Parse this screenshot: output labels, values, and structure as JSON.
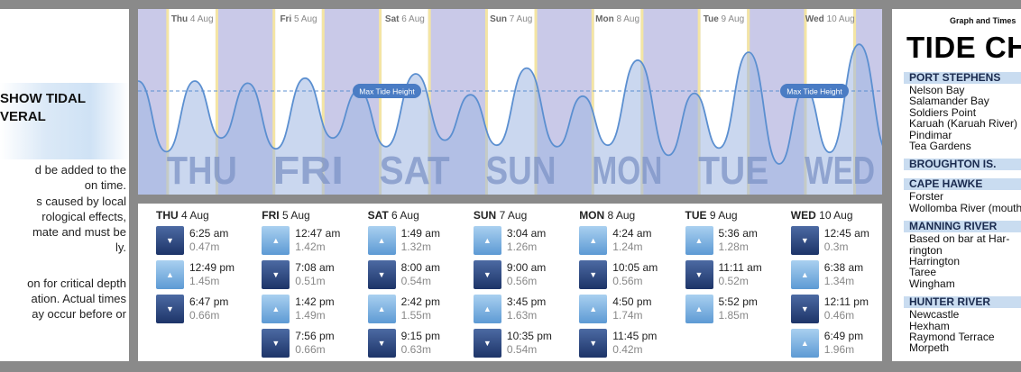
{
  "left": {
    "heading": "SHOW TIDAL\nVERAL",
    "paragraph1": [
      "d be added to the",
      "on time."
    ],
    "paragraph2": [
      "s caused by local",
      "rological   effects,",
      "mate and must be",
      "ly."
    ],
    "paragraph3": [
      "on for critical depth",
      "ation. Actual times",
      "ay occur before or"
    ]
  },
  "chart": {
    "day_labels": [
      "THU",
      "FRI",
      "SAT",
      "SUN",
      "MON",
      "TUE",
      "WED"
    ],
    "column_headers": [
      {
        "dow": "Thu",
        "date": "4 Aug"
      },
      {
        "dow": "Fri",
        "date": "5 Aug"
      },
      {
        "dow": "Sat",
        "date": "6 Aug"
      },
      {
        "dow": "Sun",
        "date": "7 Aug"
      },
      {
        "dow": "Mon",
        "date": "8 Aug"
      },
      {
        "dow": "Tue",
        "date": "9 Aug"
      },
      {
        "dow": "Wed",
        "date": "10 Aug"
      }
    ],
    "max_label": "Max Tide Height",
    "colors": {
      "night": "#c9c9e8",
      "day": "#ffffff",
      "dawn": "#f4e5a3",
      "water": "#9fb6e2",
      "curve": "#5b8fd0",
      "max_badge": "#4a7cc4"
    }
  },
  "chart_data": {
    "type": "area",
    "title": "",
    "xlabel": "",
    "ylabel": "",
    "max_tide_height": 2.0,
    "series": [
      {
        "points": [
          {
            "day": 0,
            "time": "6:25 am",
            "height": 0.47
          },
          {
            "day": 0,
            "time": "12:49 pm",
            "height": 1.45
          },
          {
            "day": 0,
            "time": "6:47 pm",
            "height": 0.66
          },
          {
            "day": 1,
            "time": "12:47 am",
            "height": 1.42
          },
          {
            "day": 1,
            "time": "7:08 am",
            "height": 0.51
          },
          {
            "day": 1,
            "time": "1:42 pm",
            "height": 1.49
          },
          {
            "day": 1,
            "time": "7:56 pm",
            "height": 0.66
          },
          {
            "day": 2,
            "time": "1:49 am",
            "height": 1.32
          },
          {
            "day": 2,
            "time": "8:00 am",
            "height": 0.54
          },
          {
            "day": 2,
            "time": "2:42 pm",
            "height": 1.55
          },
          {
            "day": 2,
            "time": "9:15 pm",
            "height": 0.63
          },
          {
            "day": 3,
            "time": "3:04 am",
            "height": 1.26
          },
          {
            "day": 3,
            "time": "9:00 am",
            "height": 0.56
          },
          {
            "day": 3,
            "time": "3:45 pm",
            "height": 1.63
          },
          {
            "day": 3,
            "time": "10:35 pm",
            "height": 0.54
          },
          {
            "day": 4,
            "time": "4:24 am",
            "height": 1.24
          },
          {
            "day": 4,
            "time": "10:05 am",
            "height": 0.56
          },
          {
            "day": 4,
            "time": "4:50 pm",
            "height": 1.74
          },
          {
            "day": 4,
            "time": "11:45 pm",
            "height": 0.42
          },
          {
            "day": 5,
            "time": "5:36 am",
            "height": 1.28
          },
          {
            "day": 5,
            "time": "11:11 am",
            "height": 0.52
          },
          {
            "day": 5,
            "time": "5:52 pm",
            "height": 1.85
          },
          {
            "day": 6,
            "time": "12:45 am",
            "height": 0.3
          },
          {
            "day": 6,
            "time": "6:38 am",
            "height": 1.34
          },
          {
            "day": 6,
            "time": "12:11 pm",
            "height": 0.46
          },
          {
            "day": 6,
            "time": "6:49 pm",
            "height": 1.96
          }
        ]
      }
    ]
  },
  "table": {
    "days": [
      {
        "dow": "THU",
        "date": "4 Aug",
        "entries": [
          {
            "type": "low",
            "time": "6:25 am",
            "height": "0.47m"
          },
          {
            "type": "high",
            "time": "12:49 pm",
            "height": "1.45m"
          },
          {
            "type": "low",
            "time": "6:47 pm",
            "height": "0.66m"
          }
        ]
      },
      {
        "dow": "FRI",
        "date": "5 Aug",
        "entries": [
          {
            "type": "high",
            "time": "12:47 am",
            "height": "1.42m"
          },
          {
            "type": "low",
            "time": "7:08 am",
            "height": "0.51m"
          },
          {
            "type": "high",
            "time": "1:42 pm",
            "height": "1.49m"
          },
          {
            "type": "low",
            "time": "7:56 pm",
            "height": "0.66m"
          }
        ]
      },
      {
        "dow": "SAT",
        "date": "6 Aug",
        "entries": [
          {
            "type": "high",
            "time": "1:49 am",
            "height": "1.32m"
          },
          {
            "type": "low",
            "time": "8:00 am",
            "height": "0.54m"
          },
          {
            "type": "high",
            "time": "2:42 pm",
            "height": "1.55m"
          },
          {
            "type": "low",
            "time": "9:15 pm",
            "height": "0.63m"
          }
        ]
      },
      {
        "dow": "SUN",
        "date": "7 Aug",
        "entries": [
          {
            "type": "high",
            "time": "3:04 am",
            "height": "1.26m"
          },
          {
            "type": "low",
            "time": "9:00 am",
            "height": "0.56m"
          },
          {
            "type": "high",
            "time": "3:45 pm",
            "height": "1.63m"
          },
          {
            "type": "low",
            "time": "10:35 pm",
            "height": "0.54m"
          }
        ]
      },
      {
        "dow": "MON",
        "date": "8 Aug",
        "entries": [
          {
            "type": "high",
            "time": "4:24 am",
            "height": "1.24m"
          },
          {
            "type": "low",
            "time": "10:05 am",
            "height": "0.56m"
          },
          {
            "type": "high",
            "time": "4:50 pm",
            "height": "1.74m"
          },
          {
            "type": "low",
            "time": "11:45 pm",
            "height": "0.42m"
          }
        ]
      },
      {
        "dow": "TUE",
        "date": "9 Aug",
        "entries": [
          {
            "type": "high",
            "time": "5:36 am",
            "height": "1.28m"
          },
          {
            "type": "low",
            "time": "11:11 am",
            "height": "0.52m"
          },
          {
            "type": "high",
            "time": "5:52 pm",
            "height": "1.85m"
          }
        ]
      },
      {
        "dow": "WED",
        "date": "10 Aug",
        "entries": [
          {
            "type": "low",
            "time": "12:45 am",
            "height": "0.3m"
          },
          {
            "type": "high",
            "time": "6:38 am",
            "height": "1.34m"
          },
          {
            "type": "low",
            "time": "12:11 pm",
            "height": "0.46m"
          },
          {
            "type": "high",
            "time": "6:49 pm",
            "height": "1.96m"
          }
        ]
      }
    ]
  },
  "right": {
    "subtitle": "Graph and Times",
    "title": "TIDE CH",
    "regions": [
      {
        "name": "PORT STEPHENS",
        "places": [
          "Nelson Bay",
          "Salamander Bay",
          "Soldiers Point",
          "Karuah (Karuah River)",
          "Pindimar",
          "Tea Gardens"
        ]
      },
      {
        "name": "BROUGHTON IS.",
        "places": []
      },
      {
        "name": "CAPE HAWKE",
        "places": [
          "Forster",
          "Wollomba River (mouth"
        ]
      },
      {
        "name": "MANNING RIVER",
        "places": [
          "Based on bar at Har-",
          "rington",
          "Harrington",
          "Taree",
          "Wingham"
        ]
      },
      {
        "name": "HUNTER RIVER",
        "places": [
          "Newcastle",
          "Hexham",
          "Raymond Terrace",
          "Morpeth"
        ]
      }
    ]
  }
}
